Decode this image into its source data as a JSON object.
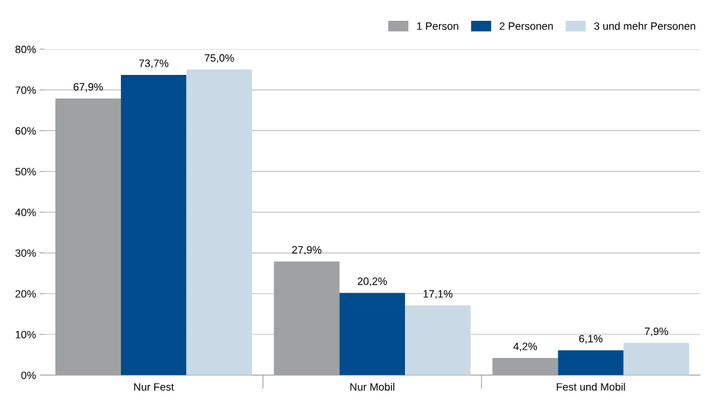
{
  "chart_data": {
    "type": "bar",
    "categories": [
      "Nur Fest",
      "Nur Mobil",
      "Fest und Mobil"
    ],
    "series": [
      {
        "name": "1 Person",
        "color": "#a0a1a3",
        "values": [
          67.9,
          27.9,
          4.2
        ],
        "value_labels": [
          "67,9%",
          "27,9%",
          "4,2%"
        ]
      },
      {
        "name": "2 Personen",
        "color": "#004b8d",
        "values": [
          73.7,
          20.2,
          6.1
        ],
        "value_labels": [
          "73,7%",
          "20,2%",
          "6,1%"
        ]
      },
      {
        "name": "3 und mehr Personen",
        "color": "#c9d9e6",
        "values": [
          75.0,
          17.1,
          7.9
        ],
        "value_labels": [
          "75,0%",
          "17,1%",
          "7,9%"
        ]
      }
    ],
    "ylim": [
      0,
      80
    ],
    "yticks": [
      {
        "value": 0,
        "label": "0%"
      },
      {
        "value": 10,
        "label": "10%"
      },
      {
        "value": 20,
        "label": "20%"
      },
      {
        "value": 30,
        "label": "30%"
      },
      {
        "value": 40,
        "label": "40%"
      },
      {
        "value": 50,
        "label": "50%"
      },
      {
        "value": 60,
        "label": "60%"
      },
      {
        "value": 70,
        "label": "70%"
      },
      {
        "value": 80,
        "label": "80%"
      }
    ],
    "grid": "y",
    "legend": "top right"
  }
}
